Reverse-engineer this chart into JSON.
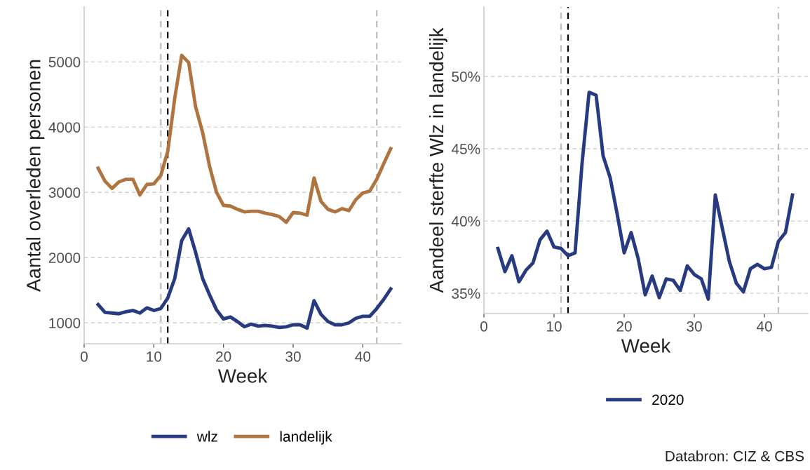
{
  "chart_data": [
    {
      "type": "line",
      "xlabel": "Week",
      "ylabel": "Aantal overleden personen",
      "x": [
        2,
        3,
        4,
        5,
        6,
        7,
        8,
        9,
        10,
        11,
        12,
        13,
        14,
        15,
        16,
        17,
        18,
        19,
        20,
        21,
        22,
        23,
        24,
        25,
        26,
        27,
        28,
        29,
        30,
        31,
        32,
        33,
        34,
        35,
        36,
        37,
        38,
        39,
        40,
        41,
        42,
        43,
        44
      ],
      "series": [
        {
          "name": "wlz",
          "color": "#283a80",
          "values": [
            1280,
            1160,
            1150,
            1140,
            1170,
            1190,
            1150,
            1230,
            1190,
            1220,
            1380,
            1680,
            2260,
            2440,
            2080,
            1680,
            1430,
            1200,
            1060,
            1090,
            1020,
            940,
            980,
            950,
            960,
            950,
            930,
            940,
            970,
            970,
            920,
            1340,
            1130,
            1020,
            970,
            970,
            1000,
            1070,
            1100,
            1100,
            1220,
            1360,
            1520
          ]
        },
        {
          "name": "landelijk",
          "color": "#b07440",
          "values": [
            3370,
            3170,
            3060,
            3160,
            3200,
            3200,
            2960,
            3120,
            3130,
            3260,
            3630,
            4440,
            5100,
            4990,
            4310,
            3920,
            3400,
            3000,
            2800,
            2790,
            2740,
            2700,
            2710,
            2710,
            2680,
            2660,
            2630,
            2540,
            2690,
            2680,
            2650,
            3220,
            2860,
            2740,
            2700,
            2750,
            2720,
            2890,
            2990,
            3020,
            3200,
            3440,
            3670
          ]
        }
      ],
      "xlim": [
        0,
        45.5
      ],
      "xticks": [
        0,
        10,
        20,
        30,
        40
      ],
      "ylim": [
        680,
        5840
      ],
      "yticks": [
        1000,
        2000,
        3000,
        4000,
        5000
      ],
      "ref_lines": [
        {
          "axis": "x",
          "value": 11,
          "color": "#bdbdbd",
          "line_style": "dashed"
        },
        {
          "axis": "x",
          "value": 42,
          "color": "#bdbdbd",
          "line_style": "dashed"
        },
        {
          "axis": "x",
          "value": 12,
          "color": "#000000",
          "line_style": "dashed"
        }
      ],
      "grid": "y",
      "legend": "bottom",
      "line_style": "solid",
      "marker": "none"
    },
    {
      "type": "line",
      "xlabel": "Week",
      "ylabel": "Aandeel sterfte Wlz in landelijk",
      "x": [
        2,
        3,
        4,
        5,
        6,
        7,
        8,
        9,
        10,
        11,
        12,
        13,
        14,
        15,
        16,
        17,
        18,
        19,
        20,
        21,
        22,
        23,
        24,
        25,
        26,
        27,
        28,
        29,
        30,
        31,
        32,
        33,
        34,
        35,
        36,
        37,
        38,
        39,
        40,
        41,
        42,
        43,
        44
      ],
      "series": [
        {
          "name": "2020",
          "color": "#283a80",
          "values": [
            38.1,
            36.5,
            37.6,
            35.8,
            36.6,
            37.1,
            38.7,
            39.3,
            38.2,
            38.1,
            37.6,
            37.8,
            44.0,
            48.9,
            48.7,
            44.5,
            43.0,
            40.5,
            37.8,
            39.2,
            37.4,
            34.9,
            36.2,
            34.7,
            36.0,
            35.9,
            35.2,
            36.9,
            36.3,
            36.0,
            34.6,
            41.8,
            39.5,
            37.2,
            35.7,
            35.1,
            36.7,
            37.0,
            36.7,
            36.8,
            38.6,
            39.2,
            41.8
          ]
        }
      ],
      "xlim": [
        0,
        46.2
      ],
      "xticks": [
        0,
        10,
        20,
        30,
        40
      ],
      "ylim": [
        33.6,
        54.8
      ],
      "yticks": [
        {
          "value": 35,
          "label": "35%"
        },
        {
          "value": 40,
          "label": "40%"
        },
        {
          "value": 45,
          "label": "45%"
        },
        {
          "value": 50,
          "label": "50%"
        }
      ],
      "ref_lines": [
        {
          "axis": "x",
          "value": 11,
          "color": "#bdbdbd",
          "line_style": "dashed"
        },
        {
          "axis": "x",
          "value": 42,
          "color": "#bdbdbd",
          "line_style": "dashed"
        },
        {
          "axis": "x",
          "value": 12,
          "color": "#000000",
          "line_style": "dashed"
        }
      ],
      "grid": "y",
      "legend": "bottom",
      "line_style": "solid",
      "marker": "none",
      "annotations": [
        "Databron: CIZ & CBS"
      ]
    }
  ]
}
